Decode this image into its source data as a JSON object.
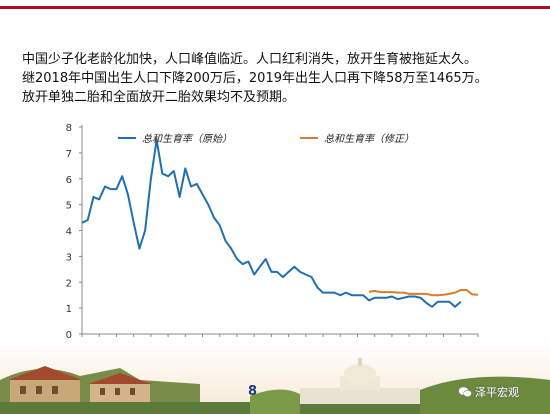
{
  "headline": {
    "line1": "中国少子化老龄化加快，人口峰值临近。人口红利消失，放开生育被拖延太久。",
    "line2": "继2018年中国出生人口下降200万后，2019年出生人口再下降58万至1465万。",
    "line3": "放开单独二胎和全面放开二胎效果均不及预期。"
  },
  "page_number": "8",
  "watermark": {
    "text": "泽平宏观",
    "icon": "wechat-icon"
  },
  "colors": {
    "accent": "#a8102a",
    "original": "#1f6fb3",
    "revised": "#d97c2b"
  },
  "chart_data": {
    "type": "line",
    "title": "",
    "xlabel": "",
    "ylabel": "",
    "ylim": [
      0,
      8
    ],
    "xlim": [
      1950,
      2019
    ],
    "y_ticks": [
      0,
      1,
      2,
      3,
      4,
      5,
      6,
      7,
      8
    ],
    "x_ticks": [
      1950,
      1953,
      1956,
      1959,
      1962,
      1965,
      1968,
      1971,
      1974,
      1977,
      1980,
      1983,
      1986,
      1989,
      1992,
      1995,
      1998,
      2001,
      2004,
      2007,
      2010,
      2013,
      2016,
      2019
    ],
    "grid": false,
    "legend_position": "top",
    "series": [
      {
        "name": "总和生育率（原始）",
        "color": "#1f6fb3",
        "x": [
          1950,
          1951,
          1952,
          1953,
          1954,
          1955,
          1956,
          1957,
          1958,
          1959,
          1960,
          1961,
          1962,
          1963,
          1964,
          1965,
          1966,
          1967,
          1968,
          1969,
          1970,
          1971,
          1972,
          1973,
          1974,
          1975,
          1976,
          1977,
          1978,
          1979,
          1980,
          1981,
          1982,
          1983,
          1984,
          1985,
          1986,
          1987,
          1988,
          1989,
          1990,
          1991,
          1992,
          1993,
          1994,
          1995,
          1996,
          1997,
          1998,
          1999,
          2000,
          2001,
          2002,
          2003,
          2004,
          2005,
          2006,
          2007,
          2008,
          2009,
          2010,
          2011,
          2012,
          2013,
          2014,
          2015,
          2016
        ],
        "values": [
          4.3,
          4.4,
          5.3,
          5.2,
          5.7,
          5.6,
          5.6,
          6.1,
          5.4,
          4.3,
          3.3,
          4.0,
          6.0,
          7.5,
          6.2,
          6.1,
          6.3,
          5.3,
          6.4,
          5.7,
          5.8,
          5.4,
          5.0,
          4.5,
          4.2,
          3.6,
          3.3,
          2.9,
          2.7,
          2.8,
          2.3,
          2.6,
          2.9,
          2.4,
          2.4,
          2.2,
          2.4,
          2.6,
          2.4,
          2.3,
          2.2,
          1.8,
          1.6,
          1.6,
          1.6,
          1.5,
          1.6,
          1.5,
          1.5,
          1.5,
          1.3,
          1.4,
          1.4,
          1.4,
          1.45,
          1.35,
          1.4,
          1.45,
          1.45,
          1.4,
          1.2,
          1.05,
          1.25,
          1.25,
          1.25,
          1.05,
          1.25
        ]
      },
      {
        "name": "总和生育率（修正）",
        "color": "#d97c2b",
        "x": [
          2000,
          2001,
          2002,
          2003,
          2004,
          2005,
          2006,
          2007,
          2008,
          2009,
          2010,
          2011,
          2012,
          2013,
          2014,
          2015,
          2016,
          2017,
          2018,
          2019
        ],
        "values": [
          1.63,
          1.66,
          1.62,
          1.62,
          1.62,
          1.6,
          1.6,
          1.55,
          1.55,
          1.55,
          1.55,
          1.5,
          1.5,
          1.52,
          1.55,
          1.6,
          1.7,
          1.7,
          1.53,
          1.52
        ]
      }
    ]
  }
}
